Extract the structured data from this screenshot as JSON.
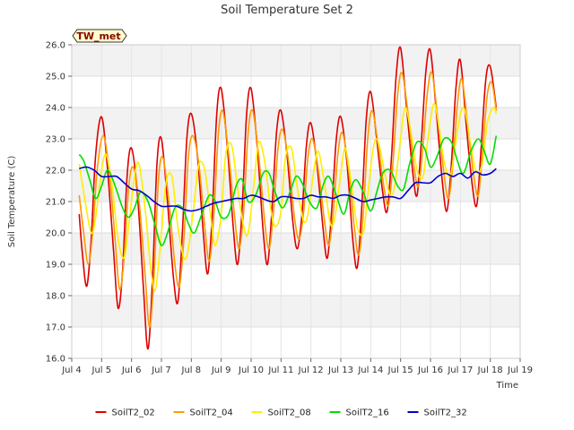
{
  "chart_data": {
    "type": "line",
    "title": "Soil Temperature Set 2",
    "xlabel": "Time",
    "ylabel": "Soil Temperature (C)",
    "badge": "TW_met",
    "xlim": [
      4.0,
      19.0
    ],
    "ylim": [
      16.0,
      26.0
    ],
    "xticks": [
      {
        "value": 4,
        "label": "Jul 4"
      },
      {
        "value": 5,
        "label": "Jul 5"
      },
      {
        "value": 6,
        "label": "Jul 6"
      },
      {
        "value": 7,
        "label": "Jul 7"
      },
      {
        "value": 8,
        "label": "Jul 8"
      },
      {
        "value": 9,
        "label": "Jul 9"
      },
      {
        "value": 10,
        "label": "Jul 10"
      },
      {
        "value": 11,
        "label": "Jul 11"
      },
      {
        "value": 12,
        "label": "Jul 12"
      },
      {
        "value": 13,
        "label": "Jul 13"
      },
      {
        "value": 14,
        "label": "Jul 14"
      },
      {
        "value": 15,
        "label": "Jul 15"
      },
      {
        "value": 16,
        "label": "Jul 16"
      },
      {
        "value": 17,
        "label": "Jul 17"
      },
      {
        "value": 18,
        "label": "Jul 18"
      },
      {
        "value": 19,
        "label": "Jul 19"
      }
    ],
    "yticks": [
      {
        "value": 16,
        "label": "16.0"
      },
      {
        "value": 17,
        "label": "17.0"
      },
      {
        "value": 18,
        "label": "18.0"
      },
      {
        "value": 19,
        "label": "19.0"
      },
      {
        "value": 20,
        "label": "20.0"
      },
      {
        "value": 21,
        "label": "21.0"
      },
      {
        "value": 22,
        "label": "22.0"
      },
      {
        "value": 23,
        "label": "23.0"
      },
      {
        "value": 24,
        "label": "24.0"
      },
      {
        "value": 25,
        "label": "25.0"
      },
      {
        "value": 26,
        "label": "26.0"
      }
    ],
    "grid": true,
    "legend_position": "bottom",
    "series": [
      {
        "name": "SoilT2_02",
        "color": "#dd0000",
        "x": [
          4.25,
          4.35,
          4.5,
          4.65,
          4.8,
          5.0,
          5.2,
          5.4,
          5.55,
          5.7,
          5.85,
          6.0,
          6.2,
          6.4,
          6.55,
          6.7,
          6.85,
          7.0,
          7.2,
          7.4,
          7.55,
          7.7,
          7.85,
          8.0,
          8.2,
          8.4,
          8.55,
          8.7,
          8.85,
          9.0,
          9.2,
          9.4,
          9.55,
          9.7,
          9.85,
          10.0,
          10.2,
          10.4,
          10.55,
          10.7,
          10.85,
          11.0,
          11.2,
          11.4,
          11.55,
          11.7,
          11.85,
          12.0,
          12.2,
          12.4,
          12.55,
          12.7,
          12.85,
          13.0,
          13.2,
          13.4,
          13.55,
          13.7,
          13.85,
          14.0,
          14.2,
          14.4,
          14.55,
          14.7,
          14.85,
          15.0,
          15.2,
          15.4,
          15.55,
          15.7,
          15.85,
          16.0,
          16.2,
          16.4,
          16.55,
          16.7,
          16.85,
          17.0,
          17.2,
          17.4,
          17.55,
          17.7,
          17.85,
          18.0,
          18.2
        ],
        "y": [
          20.6,
          19.4,
          18.3,
          19.8,
          22.5,
          23.7,
          22.0,
          19.4,
          17.6,
          18.8,
          21.8,
          22.7,
          21.2,
          18.2,
          16.3,
          18.5,
          22.2,
          23.0,
          21.0,
          18.6,
          17.8,
          20.0,
          23.0,
          23.8,
          22.5,
          20.0,
          18.7,
          20.6,
          23.8,
          24.6,
          22.8,
          20.2,
          19.0,
          20.8,
          23.8,
          24.6,
          22.8,
          20.1,
          19.0,
          20.8,
          23.2,
          23.9,
          22.5,
          20.3,
          19.5,
          20.6,
          22.8,
          23.5,
          22.2,
          20.2,
          19.2,
          20.8,
          23.0,
          23.7,
          22.3,
          19.8,
          18.9,
          20.8,
          23.6,
          24.5,
          23.0,
          21.3,
          20.7,
          22.5,
          25.0,
          25.9,
          24.0,
          22.0,
          21.2,
          23.0,
          25.2,
          25.8,
          23.8,
          21.6,
          20.7,
          22.2,
          24.6,
          25.5,
          23.4,
          21.5,
          20.9,
          22.8,
          24.9,
          25.3,
          24.0
        ]
      },
      {
        "name": "SoilT2_04",
        "color": "#ff9900",
        "x": [
          4.25,
          4.4,
          4.55,
          4.7,
          4.85,
          5.05,
          5.25,
          5.45,
          5.6,
          5.75,
          5.9,
          6.05,
          6.25,
          6.45,
          6.6,
          6.75,
          6.9,
          7.05,
          7.25,
          7.45,
          7.6,
          7.75,
          7.9,
          8.05,
          8.25,
          8.45,
          8.6,
          8.75,
          8.9,
          9.05,
          9.25,
          9.45,
          9.6,
          9.75,
          9.9,
          10.05,
          10.25,
          10.45,
          10.6,
          10.75,
          10.9,
          11.05,
          11.25,
          11.45,
          11.6,
          11.75,
          11.9,
          12.05,
          12.25,
          12.45,
          12.6,
          12.75,
          12.9,
          13.05,
          13.25,
          13.45,
          13.6,
          13.75,
          13.9,
          14.05,
          14.25,
          14.45,
          14.6,
          14.75,
          14.9,
          15.05,
          15.25,
          15.45,
          15.6,
          15.75,
          15.9,
          16.05,
          16.25,
          16.45,
          16.6,
          16.75,
          16.9,
          17.05,
          17.25,
          17.45,
          17.6,
          17.75,
          17.9,
          18.05,
          18.2
        ],
        "y": [
          21.2,
          20.0,
          19.0,
          20.0,
          22.0,
          23.1,
          22.0,
          19.8,
          18.2,
          19.2,
          21.4,
          22.1,
          21.0,
          18.7,
          17.0,
          18.6,
          21.7,
          22.4,
          21.0,
          19.0,
          18.3,
          19.8,
          22.4,
          23.1,
          22.2,
          20.2,
          19.1,
          20.5,
          23.1,
          23.9,
          22.5,
          20.5,
          19.5,
          20.7,
          23.2,
          23.9,
          22.5,
          20.4,
          19.5,
          20.7,
          22.7,
          23.3,
          22.3,
          20.5,
          19.8,
          20.6,
          22.4,
          23.0,
          22.0,
          20.4,
          19.6,
          20.7,
          22.5,
          23.2,
          22.1,
          20.2,
          19.3,
          20.6,
          23.0,
          23.9,
          22.8,
          21.4,
          20.9,
          22.3,
          24.4,
          25.1,
          23.8,
          22.1,
          21.5,
          22.8,
          24.5,
          25.1,
          23.6,
          21.9,
          21.1,
          22.2,
          24.1,
          24.9,
          23.4,
          21.8,
          21.2,
          22.7,
          24.4,
          24.8,
          23.9
        ]
      },
      {
        "name": "SoilT2_08",
        "color": "#ffee00",
        "x": [
          4.25,
          4.45,
          4.65,
          4.8,
          5.0,
          5.15,
          5.35,
          5.55,
          5.75,
          5.9,
          6.1,
          6.25,
          6.45,
          6.65,
          6.8,
          7.0,
          7.15,
          7.35,
          7.55,
          7.75,
          7.9,
          8.1,
          8.25,
          8.45,
          8.65,
          8.8,
          9.0,
          9.15,
          9.35,
          9.55,
          9.75,
          9.9,
          10.1,
          10.25,
          10.45,
          10.65,
          10.8,
          11.0,
          11.15,
          11.35,
          11.55,
          11.75,
          11.9,
          12.1,
          12.25,
          12.45,
          12.65,
          12.8,
          13.0,
          13.15,
          13.35,
          13.55,
          13.75,
          13.9,
          14.1,
          14.25,
          14.45,
          14.65,
          14.8,
          15.0,
          15.15,
          15.35,
          15.55,
          15.75,
          15.9,
          16.1,
          16.25,
          16.45,
          16.65,
          16.8,
          17.0,
          17.15,
          17.35,
          17.55,
          17.75,
          17.9,
          18.1,
          18.2
        ],
        "y": [
          22.2,
          21.0,
          20.0,
          20.5,
          22.0,
          22.5,
          21.5,
          19.8,
          19.2,
          20.2,
          21.8,
          22.2,
          20.8,
          18.8,
          18.2,
          20.0,
          21.6,
          21.8,
          20.2,
          19.2,
          19.5,
          21.0,
          22.2,
          22.0,
          20.5,
          19.6,
          20.6,
          22.5,
          22.8,
          21.4,
          20.2,
          20.0,
          21.6,
          22.9,
          22.3,
          20.8,
          20.2,
          20.7,
          22.4,
          22.7,
          21.4,
          20.4,
          20.6,
          22.0,
          22.6,
          21.6,
          20.3,
          20.5,
          21.9,
          22.7,
          21.6,
          20.2,
          20.0,
          21.2,
          22.8,
          22.9,
          22.0,
          21.2,
          21.5,
          23.0,
          24.0,
          23.2,
          22.0,
          21.8,
          22.9,
          24.1,
          23.6,
          22.3,
          21.8,
          22.6,
          23.8,
          23.9,
          22.8,
          21.9,
          22.3,
          23.5,
          24.0,
          23.8
        ]
      },
      {
        "name": "SoilT2_16",
        "color": "#00dd00",
        "x": [
          4.25,
          4.4,
          4.6,
          4.8,
          5.0,
          5.2,
          5.45,
          5.7,
          5.9,
          6.1,
          6.3,
          6.55,
          6.8,
          7.0,
          7.2,
          7.45,
          7.7,
          7.9,
          8.1,
          8.35,
          8.6,
          8.8,
          9.0,
          9.25,
          9.5,
          9.7,
          9.9,
          10.15,
          10.4,
          10.6,
          10.8,
          11.05,
          11.3,
          11.5,
          11.7,
          11.95,
          12.2,
          12.4,
          12.6,
          12.85,
          13.1,
          13.3,
          13.5,
          13.75,
          14.0,
          14.2,
          14.4,
          14.65,
          14.9,
          15.1,
          15.3,
          15.55,
          15.8,
          16.0,
          16.2,
          16.45,
          16.7,
          16.9,
          17.1,
          17.35,
          17.6,
          17.8,
          18.0,
          18.2
        ],
        "y": [
          22.5,
          22.3,
          21.7,
          21.1,
          21.5,
          22.0,
          21.5,
          20.8,
          20.5,
          20.8,
          21.3,
          21.0,
          20.2,
          19.6,
          20.0,
          20.8,
          20.8,
          20.3,
          20.0,
          20.6,
          21.2,
          21.0,
          20.5,
          20.6,
          21.5,
          21.7,
          21.0,
          21.2,
          21.9,
          21.9,
          21.3,
          20.8,
          21.3,
          21.8,
          21.6,
          21.0,
          20.8,
          21.5,
          21.8,
          21.2,
          20.6,
          21.3,
          21.7,
          21.3,
          20.7,
          21.3,
          21.9,
          22.0,
          21.5,
          21.4,
          22.2,
          22.9,
          22.7,
          22.1,
          22.4,
          23.0,
          22.9,
          22.3,
          21.9,
          22.6,
          23.0,
          22.6,
          22.2,
          23.1
        ]
      },
      {
        "name": "SoilT2_32",
        "color": "#0000cc",
        "x": [
          4.25,
          4.5,
          4.75,
          5.0,
          5.25,
          5.5,
          5.75,
          6.0,
          6.25,
          6.5,
          6.75,
          7.0,
          7.25,
          7.5,
          7.75,
          8.0,
          8.25,
          8.5,
          8.75,
          9.0,
          9.25,
          9.5,
          9.75,
          10.0,
          10.25,
          10.5,
          10.75,
          11.0,
          11.25,
          11.5,
          11.75,
          12.0,
          12.25,
          12.5,
          12.75,
          13.0,
          13.25,
          13.5,
          13.75,
          14.0,
          14.25,
          14.5,
          14.75,
          15.0,
          15.25,
          15.5,
          15.75,
          16.0,
          16.25,
          16.5,
          16.75,
          17.0,
          17.25,
          17.5,
          17.75,
          18.0,
          18.2
        ],
        "y": [
          22.05,
          22.1,
          22.0,
          21.8,
          21.8,
          21.8,
          21.6,
          21.4,
          21.35,
          21.2,
          21.0,
          20.85,
          20.85,
          20.85,
          20.75,
          20.7,
          20.75,
          20.85,
          20.95,
          21.0,
          21.05,
          21.1,
          21.1,
          21.2,
          21.15,
          21.05,
          21.0,
          21.15,
          21.15,
          21.1,
          21.1,
          21.2,
          21.15,
          21.15,
          21.1,
          21.2,
          21.2,
          21.1,
          21.0,
          21.05,
          21.1,
          21.15,
          21.15,
          21.1,
          21.35,
          21.6,
          21.6,
          21.6,
          21.8,
          21.9,
          21.8,
          21.9,
          21.75,
          21.95,
          21.85,
          21.9,
          22.05
        ]
      }
    ]
  }
}
